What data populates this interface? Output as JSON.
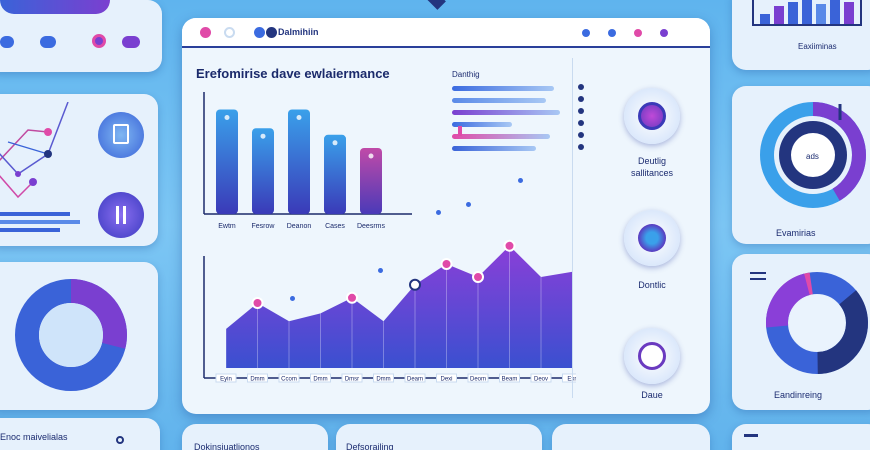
{
  "window": {
    "title": "Dalmihiin",
    "chart_title": "Erefomirise dave ewlaiermance"
  },
  "panel": {
    "heading": "Danthig",
    "labels": [
      "Deutlig",
      "sallitances"
    ],
    "icon1_label": "Dontlic",
    "icon2_label": "Daue"
  },
  "right": {
    "gauge_value": "ads",
    "gauge_label": "Evamirias",
    "donut_label": "Eandinreing",
    "top_label": "Eaxiiminas"
  },
  "bottom": {
    "left_label": "Enoc maivelialas",
    "mid_label": "Dokinsiuatlionos",
    "mid_label2": "Defsorailing"
  },
  "colors": {
    "accent_blue": "#3b6be0",
    "accent_purple": "#7a3fd0",
    "accent_pink": "#e04aa8",
    "navy": "#23357f"
  },
  "icons": [
    "target-icon",
    "radar-icon",
    "bolt-icon"
  ],
  "chart_data": [
    {
      "type": "bar",
      "categories": [
        "Ewtm",
        "Fesrow",
        "Deanon",
        "Cases",
        "Deesrms"
      ],
      "values": [
        9.5,
        7.8,
        9.5,
        7.2,
        6.0
      ],
      "ylim": [
        0,
        10
      ],
      "xlabel": "",
      "ylabel": ""
    },
    {
      "type": "area",
      "x": [
        "Eyin",
        "Dmm",
        "Ccom",
        "Dmm",
        "Dmsr",
        "Dmm",
        "Deam",
        "Dexi",
        "Deom",
        "Beam",
        "Deov",
        "Exn"
      ],
      "values": [
        3.0,
        5.0,
        3.6,
        4.2,
        5.4,
        3.6,
        6.4,
        8.0,
        7.0,
        9.4,
        7.0,
        7.4
      ],
      "markers": [
        1,
        4,
        6,
        7,
        8,
        9
      ],
      "ylim": [
        0,
        10
      ],
      "xlabel": "",
      "ylabel": ""
    },
    {
      "type": "bar",
      "categories": [
        "r1",
        "r2",
        "r3",
        "r4",
        "r5",
        "r6"
      ],
      "values": [
        0.85,
        0.78,
        0.9,
        0.5,
        0.82,
        0.7
      ],
      "xlabel": "",
      "ylabel": ""
    }
  ]
}
